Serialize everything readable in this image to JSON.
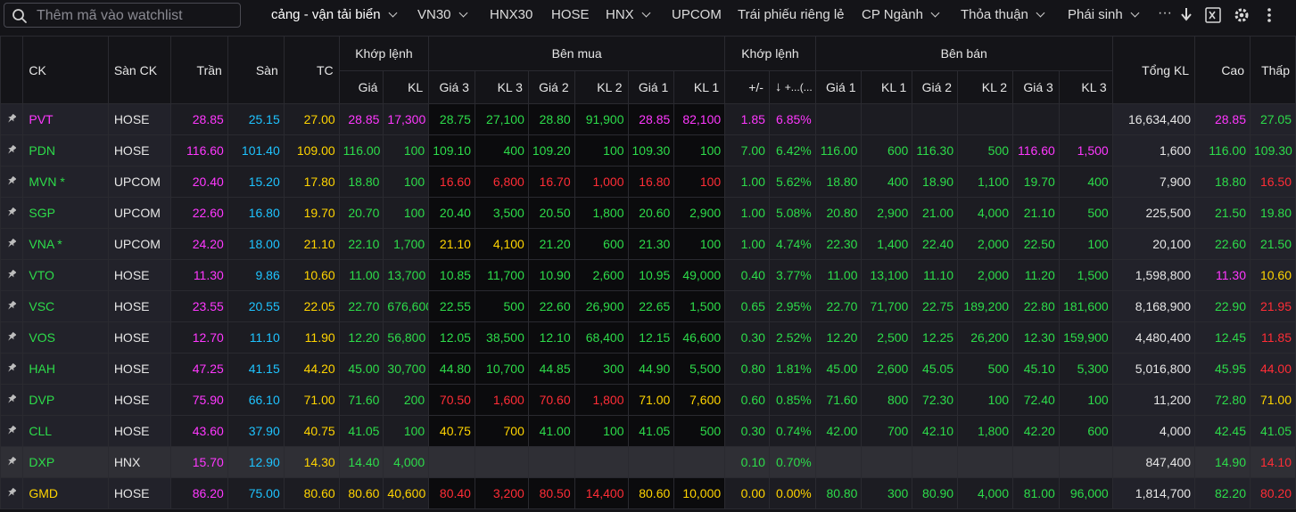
{
  "search": {
    "placeholder": "Thêm mã vào watchlist"
  },
  "nav": [
    {
      "label": "cảng - vận tải biển",
      "dropdown": true
    },
    {
      "label": "VN30",
      "dropdown": true
    },
    {
      "label": "HNX30",
      "dropdown": false
    },
    {
      "label": "HOSE",
      "dropdown": false
    },
    {
      "label": "HNX",
      "dropdown": true
    },
    {
      "label": "UPCOM",
      "dropdown": false
    },
    {
      "label": "Trái phiếu riêng lẻ",
      "dropdown": false
    },
    {
      "label": "CP Ngành",
      "dropdown": true
    },
    {
      "label": "Thỏa thuận",
      "dropdown": true
    },
    {
      "label": "Phái sinh",
      "dropdown": true
    }
  ],
  "toolbar_icons": [
    "more-horizontal-icon",
    "download-icon",
    "excel-icon",
    "gear-icon",
    "more-vertical-icon"
  ],
  "colors": {
    "ceiling": "#ff38ff",
    "floor": "#1ec3ff",
    "ref": "#ffd400",
    "up": "#2ddc4a",
    "down": "#ff2d36"
  },
  "header": {
    "ck": "CK",
    "san": "Sàn CK",
    "tran": "Trần",
    "san_price": "Sàn",
    "tc": "TC",
    "khop_lenh": "Khớp lệnh",
    "ben_mua": "Bên mua",
    "ben_ban": "Bên bán",
    "gia": "Giá",
    "kl": "KL",
    "gia3": "Giá 3",
    "kl3": "KL 3",
    "gia2": "Giá 2",
    "kl2": "KL 2",
    "gia1": "Giá 1",
    "kl1": "KL 1",
    "change": "+/-",
    "pct_arrow": "↓",
    "pct_label": "+...(...",
    "tong_kl": "Tổng KL",
    "cao": "Cao",
    "thap": "Thấp"
  },
  "rows": [
    {
      "sym": [
        "PVT",
        "p"
      ],
      "ex": "HOSE",
      "ceil": "28.85",
      "floor": "25.15",
      "ref": "27.00",
      "mp": [
        "28.85",
        "p"
      ],
      "mv": [
        "17,300",
        "p"
      ],
      "b3": [
        "28.75",
        "u"
      ],
      "bv3": [
        "27,100",
        "u"
      ],
      "b2": [
        "28.80",
        "u"
      ],
      "bv2": [
        "91,900",
        "u"
      ],
      "b1": [
        "28.85",
        "p"
      ],
      "bv1": [
        "82,100",
        "p"
      ],
      "chg": [
        "1.85",
        "p"
      ],
      "pct": [
        "6.85%",
        "p"
      ],
      "s1": [
        "",
        ""
      ],
      "sv1": [
        "",
        ""
      ],
      "s2": [
        "",
        ""
      ],
      "sv2": [
        "",
        ""
      ],
      "s3": [
        "",
        ""
      ],
      "sv3": [
        "",
        ""
      ],
      "total": "16,634,400",
      "high": [
        "28.85",
        "p"
      ],
      "low": [
        "27.05",
        "u"
      ]
    },
    {
      "sym": [
        "PDN",
        "u"
      ],
      "ex": "HOSE",
      "ceil": "116.60",
      "floor": "101.40",
      "ref": "109.00",
      "mp": [
        "116.00",
        "u"
      ],
      "mv": [
        "100",
        "u"
      ],
      "b3": [
        "109.10",
        "u"
      ],
      "bv3": [
        "400",
        "u"
      ],
      "b2": [
        "109.20",
        "u"
      ],
      "bv2": [
        "100",
        "u"
      ],
      "b1": [
        "109.30",
        "u"
      ],
      "bv1": [
        "100",
        "u"
      ],
      "chg": [
        "7.00",
        "u"
      ],
      "pct": [
        "6.42%",
        "u"
      ],
      "s1": [
        "116.00",
        "u"
      ],
      "sv1": [
        "600",
        "u"
      ],
      "s2": [
        "116.30",
        "u"
      ],
      "sv2": [
        "500",
        "u"
      ],
      "s3": [
        "116.60",
        "p"
      ],
      "sv3": [
        "1,500",
        "p"
      ],
      "total": "1,600",
      "high": [
        "116.00",
        "u"
      ],
      "low": [
        "109.30",
        "u"
      ]
    },
    {
      "sym": [
        "MVN *",
        "u"
      ],
      "ex": "UPCOM",
      "ceil": "20.40",
      "floor": "15.20",
      "ref": "17.80",
      "mp": [
        "18.80",
        "u"
      ],
      "mv": [
        "100",
        "u"
      ],
      "b3": [
        "16.60",
        "d"
      ],
      "bv3": [
        "6,800",
        "d"
      ],
      "b2": [
        "16.70",
        "d"
      ],
      "bv2": [
        "1,000",
        "d"
      ],
      "b1": [
        "16.80",
        "d"
      ],
      "bv1": [
        "100",
        "d"
      ],
      "chg": [
        "1.00",
        "u"
      ],
      "pct": [
        "5.62%",
        "u"
      ],
      "s1": [
        "18.80",
        "u"
      ],
      "sv1": [
        "400",
        "u"
      ],
      "s2": [
        "18.90",
        "u"
      ],
      "sv2": [
        "1,100",
        "u"
      ],
      "s3": [
        "19.70",
        "u"
      ],
      "sv3": [
        "400",
        "u"
      ],
      "total": "7,900",
      "high": [
        "18.80",
        "u"
      ],
      "low": [
        "16.50",
        "d"
      ]
    },
    {
      "sym": [
        "SGP",
        "u"
      ],
      "ex": "UPCOM",
      "ceil": "22.60",
      "floor": "16.80",
      "ref": "19.70",
      "mp": [
        "20.70",
        "u"
      ],
      "mv": [
        "100",
        "u"
      ],
      "b3": [
        "20.40",
        "u"
      ],
      "bv3": [
        "3,500",
        "u"
      ],
      "b2": [
        "20.50",
        "u"
      ],
      "bv2": [
        "1,800",
        "u"
      ],
      "b1": [
        "20.60",
        "u"
      ],
      "bv1": [
        "2,900",
        "u"
      ],
      "chg": [
        "1.00",
        "u"
      ],
      "pct": [
        "5.08%",
        "u"
      ],
      "s1": [
        "20.80",
        "u"
      ],
      "sv1": [
        "2,900",
        "u"
      ],
      "s2": [
        "21.00",
        "u"
      ],
      "sv2": [
        "4,000",
        "u"
      ],
      "s3": [
        "21.10",
        "u"
      ],
      "sv3": [
        "500",
        "u"
      ],
      "total": "225,500",
      "high": [
        "21.50",
        "u"
      ],
      "low": [
        "19.80",
        "u"
      ]
    },
    {
      "sym": [
        "VNA *",
        "u"
      ],
      "ex": "UPCOM",
      "ceil": "24.20",
      "floor": "18.00",
      "ref": "21.10",
      "mp": [
        "22.10",
        "u"
      ],
      "mv": [
        "1,700",
        "u"
      ],
      "b3": [
        "21.10",
        "r"
      ],
      "bv3": [
        "4,100",
        "r"
      ],
      "b2": [
        "21.20",
        "u"
      ],
      "bv2": [
        "600",
        "u"
      ],
      "b1": [
        "21.30",
        "u"
      ],
      "bv1": [
        "100",
        "u"
      ],
      "chg": [
        "1.00",
        "u"
      ],
      "pct": [
        "4.74%",
        "u"
      ],
      "s1": [
        "22.30",
        "u"
      ],
      "sv1": [
        "1,400",
        "u"
      ],
      "s2": [
        "22.40",
        "u"
      ],
      "sv2": [
        "2,000",
        "u"
      ],
      "s3": [
        "22.50",
        "u"
      ],
      "sv3": [
        "100",
        "u"
      ],
      "total": "20,100",
      "high": [
        "22.60",
        "u"
      ],
      "low": [
        "21.50",
        "u"
      ]
    },
    {
      "sym": [
        "VTO",
        "u"
      ],
      "ex": "HOSE",
      "ceil": "11.30",
      "floor": "9.86",
      "ref": "10.60",
      "mp": [
        "11.00",
        "u"
      ],
      "mv": [
        "13,700",
        "u"
      ],
      "b3": [
        "10.85",
        "u"
      ],
      "bv3": [
        "11,700",
        "u"
      ],
      "b2": [
        "10.90",
        "u"
      ],
      "bv2": [
        "2,600",
        "u"
      ],
      "b1": [
        "10.95",
        "u"
      ],
      "bv1": [
        "49,000",
        "u"
      ],
      "chg": [
        "0.40",
        "u"
      ],
      "pct": [
        "3.77%",
        "u"
      ],
      "s1": [
        "11.00",
        "u"
      ],
      "sv1": [
        "13,100",
        "u"
      ],
      "s2": [
        "11.10",
        "u"
      ],
      "sv2": [
        "2,000",
        "u"
      ],
      "s3": [
        "11.20",
        "u"
      ],
      "sv3": [
        "1,500",
        "u"
      ],
      "total": "1,598,800",
      "high": [
        "11.30",
        "p"
      ],
      "low": [
        "10.60",
        "r"
      ]
    },
    {
      "sym": [
        "VSC",
        "u"
      ],
      "ex": "HOSE",
      "ceil": "23.55",
      "floor": "20.55",
      "ref": "22.05",
      "mp": [
        "22.70",
        "u"
      ],
      "mv": [
        "676,600",
        "u"
      ],
      "b3": [
        "22.55",
        "u"
      ],
      "bv3": [
        "500",
        "u"
      ],
      "b2": [
        "22.60",
        "u"
      ],
      "bv2": [
        "26,900",
        "u"
      ],
      "b1": [
        "22.65",
        "u"
      ],
      "bv1": [
        "1,500",
        "u"
      ],
      "chg": [
        "0.65",
        "u"
      ],
      "pct": [
        "2.95%",
        "u"
      ],
      "s1": [
        "22.70",
        "u"
      ],
      "sv1": [
        "71,700",
        "u"
      ],
      "s2": [
        "22.75",
        "u"
      ],
      "sv2": [
        "189,200",
        "u"
      ],
      "s3": [
        "22.80",
        "u"
      ],
      "sv3": [
        "181,600",
        "u"
      ],
      "total": "8,168,900",
      "high": [
        "22.90",
        "u"
      ],
      "low": [
        "21.95",
        "d"
      ]
    },
    {
      "sym": [
        "VOS",
        "u"
      ],
      "ex": "HOSE",
      "ceil": "12.70",
      "floor": "11.10",
      "ref": "11.90",
      "mp": [
        "12.20",
        "u"
      ],
      "mv": [
        "56,800",
        "u"
      ],
      "b3": [
        "12.05",
        "u"
      ],
      "bv3": [
        "38,500",
        "u"
      ],
      "b2": [
        "12.10",
        "u"
      ],
      "bv2": [
        "68,400",
        "u"
      ],
      "b1": [
        "12.15",
        "u"
      ],
      "bv1": [
        "46,600",
        "u"
      ],
      "chg": [
        "0.30",
        "u"
      ],
      "pct": [
        "2.52%",
        "u"
      ],
      "s1": [
        "12.20",
        "u"
      ],
      "sv1": [
        "2,500",
        "u"
      ],
      "s2": [
        "12.25",
        "u"
      ],
      "sv2": [
        "26,200",
        "u"
      ],
      "s3": [
        "12.30",
        "u"
      ],
      "sv3": [
        "159,900",
        "u"
      ],
      "total": "4,480,400",
      "high": [
        "12.45",
        "u"
      ],
      "low": [
        "11.85",
        "d"
      ]
    },
    {
      "sym": [
        "HAH",
        "u"
      ],
      "ex": "HOSE",
      "ceil": "47.25",
      "floor": "41.15",
      "ref": "44.20",
      "mp": [
        "45.00",
        "u"
      ],
      "mv": [
        "30,700",
        "u"
      ],
      "b3": [
        "44.80",
        "u"
      ],
      "bv3": [
        "10,700",
        "u"
      ],
      "b2": [
        "44.85",
        "u"
      ],
      "bv2": [
        "300",
        "u"
      ],
      "b1": [
        "44.90",
        "u"
      ],
      "bv1": [
        "5,500",
        "u"
      ],
      "chg": [
        "0.80",
        "u"
      ],
      "pct": [
        "1.81%",
        "u"
      ],
      "s1": [
        "45.00",
        "u"
      ],
      "sv1": [
        "2,600",
        "u"
      ],
      "s2": [
        "45.05",
        "u"
      ],
      "sv2": [
        "500",
        "u"
      ],
      "s3": [
        "45.10",
        "u"
      ],
      "sv3": [
        "5,300",
        "u"
      ],
      "total": "5,016,800",
      "high": [
        "45.95",
        "u"
      ],
      "low": [
        "44.00",
        "d"
      ]
    },
    {
      "sym": [
        "DVP",
        "u"
      ],
      "ex": "HOSE",
      "ceil": "75.90",
      "floor": "66.10",
      "ref": "71.00",
      "mp": [
        "71.60",
        "u"
      ],
      "mv": [
        "200",
        "u"
      ],
      "b3": [
        "70.50",
        "d"
      ],
      "bv3": [
        "1,600",
        "d"
      ],
      "b2": [
        "70.60",
        "d"
      ],
      "bv2": [
        "1,800",
        "d"
      ],
      "b1": [
        "71.00",
        "r"
      ],
      "bv1": [
        "7,600",
        "r"
      ],
      "chg": [
        "0.60",
        "u"
      ],
      "pct": [
        "0.85%",
        "u"
      ],
      "s1": [
        "71.60",
        "u"
      ],
      "sv1": [
        "800",
        "u"
      ],
      "s2": [
        "72.30",
        "u"
      ],
      "sv2": [
        "100",
        "u"
      ],
      "s3": [
        "72.40",
        "u"
      ],
      "sv3": [
        "100",
        "u"
      ],
      "total": "11,200",
      "high": [
        "72.80",
        "u"
      ],
      "low": [
        "71.00",
        "r"
      ]
    },
    {
      "sym": [
        "CLL",
        "u"
      ],
      "ex": "HOSE",
      "ceil": "43.60",
      "floor": "37.90",
      "ref": "40.75",
      "mp": [
        "41.05",
        "u"
      ],
      "mv": [
        "100",
        "u"
      ],
      "b3": [
        "40.75",
        "r"
      ],
      "bv3": [
        "700",
        "r"
      ],
      "b2": [
        "41.00",
        "u"
      ],
      "bv2": [
        "100",
        "u"
      ],
      "b1": [
        "41.05",
        "u"
      ],
      "bv1": [
        "500",
        "u"
      ],
      "chg": [
        "0.30",
        "u"
      ],
      "pct": [
        "0.74%",
        "u"
      ],
      "s1": [
        "42.00",
        "u"
      ],
      "sv1": [
        "700",
        "u"
      ],
      "s2": [
        "42.10",
        "u"
      ],
      "sv2": [
        "1,800",
        "u"
      ],
      "s3": [
        "42.20",
        "u"
      ],
      "sv3": [
        "600",
        "u"
      ],
      "total": "4,000",
      "high": [
        "42.45",
        "u"
      ],
      "low": [
        "41.05",
        "u"
      ]
    },
    {
      "sym": [
        "DXP",
        "u"
      ],
      "ex": "HNX",
      "ceil": "15.70",
      "floor": "12.90",
      "ref": "14.30",
      "mp": [
        "14.40",
        "u"
      ],
      "mv": [
        "4,000",
        "u"
      ],
      "b3": [
        "",
        ""
      ],
      "bv3": [
        "",
        ""
      ],
      "b2": [
        "",
        ""
      ],
      "bv2": [
        "",
        ""
      ],
      "b1": [
        "",
        ""
      ],
      "bv1": [
        "",
        ""
      ],
      "chg": [
        "0.10",
        "u"
      ],
      "pct": [
        "0.70%",
        "u"
      ],
      "s1": [
        "",
        ""
      ],
      "sv1": [
        "",
        ""
      ],
      "s2": [
        "",
        ""
      ],
      "sv2": [
        "",
        ""
      ],
      "s3": [
        "",
        ""
      ],
      "sv3": [
        "",
        ""
      ],
      "total": "847,400",
      "high": [
        "14.90",
        "u"
      ],
      "low": [
        "14.10",
        "d"
      ],
      "selected": true
    },
    {
      "sym": [
        "GMD",
        "r"
      ],
      "ex": "HOSE",
      "ceil": "86.20",
      "floor": "75.00",
      "ref": "80.60",
      "mp": [
        "80.60",
        "r"
      ],
      "mv": [
        "40,600",
        "r"
      ],
      "b3": [
        "80.40",
        "d"
      ],
      "bv3": [
        "3,200",
        "d"
      ],
      "b2": [
        "80.50",
        "d"
      ],
      "bv2": [
        "14,400",
        "d"
      ],
      "b1": [
        "80.60",
        "r"
      ],
      "bv1": [
        "10,000",
        "r"
      ],
      "chg": [
        "0.00",
        "r"
      ],
      "pct": [
        "0.00%",
        "r"
      ],
      "s1": [
        "80.80",
        "u"
      ],
      "sv1": [
        "300",
        "u"
      ],
      "s2": [
        "80.90",
        "u"
      ],
      "sv2": [
        "4,000",
        "u"
      ],
      "s3": [
        "81.00",
        "u"
      ],
      "sv3": [
        "96,000",
        "u"
      ],
      "total": "1,814,700",
      "high": [
        "82.20",
        "u"
      ],
      "low": [
        "80.20",
        "d"
      ]
    }
  ]
}
